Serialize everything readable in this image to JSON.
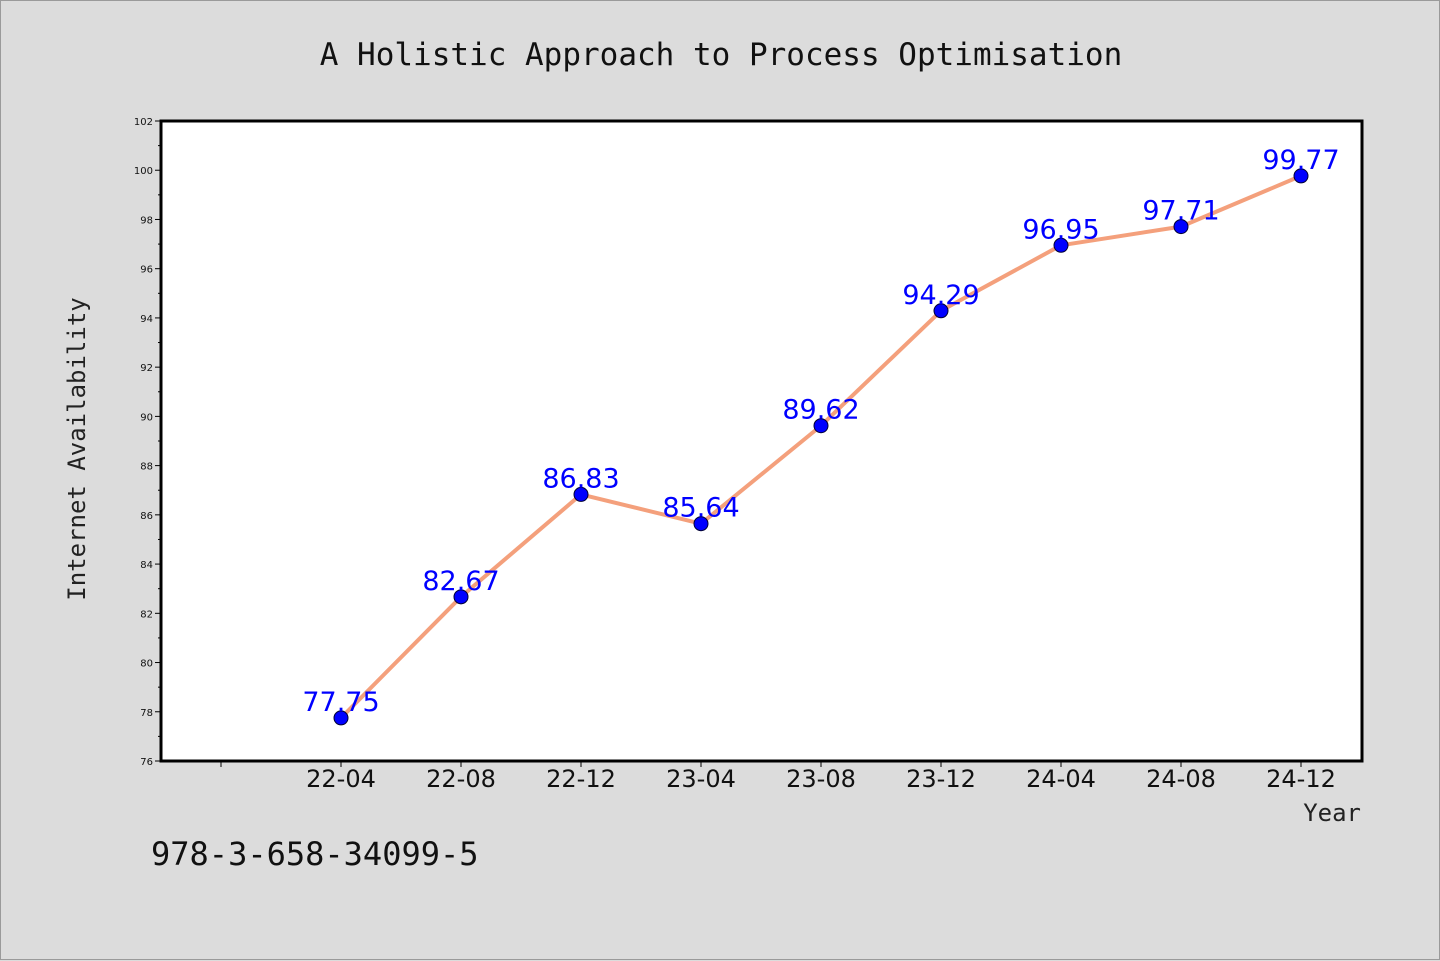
{
  "chart_data": {
    "type": "line",
    "title": "A Holistic Approach to Process Optimisation",
    "xlabel": "Year",
    "ylabel": "Internet Availability",
    "categories": [
      "22-04",
      "22-08",
      "22-12",
      "23-04",
      "23-08",
      "23-12",
      "24-04",
      "24-08",
      "24-12"
    ],
    "series": [
      {
        "values": [
          77.75,
          82.67,
          86.83,
          85.64,
          89.62,
          94.29,
          96.95,
          97.71,
          99.77
        ],
        "labels": [
          "77.75",
          "82.67",
          "86.83",
          "85.64",
          "89.62",
          "94.29",
          "96.95",
          "97.71",
          "99.77"
        ]
      }
    ],
    "ylim": [
      76,
      102
    ],
    "yticks": [
      76,
      78,
      80,
      82,
      84,
      86,
      88,
      90,
      92,
      94,
      96,
      98,
      100,
      102
    ],
    "ytick_labels": [
      "76",
      "78",
      "80",
      "82",
      "84",
      "86",
      "88",
      "90",
      "92",
      "94",
      "96",
      "98",
      "100",
      "102"
    ],
    "grid": false,
    "legend": "none",
    "line_color": "#f4a07c",
    "marker_color": "#0000ff",
    "label_color": "#0000ff"
  },
  "footnote": "978-3-658-34099-5"
}
